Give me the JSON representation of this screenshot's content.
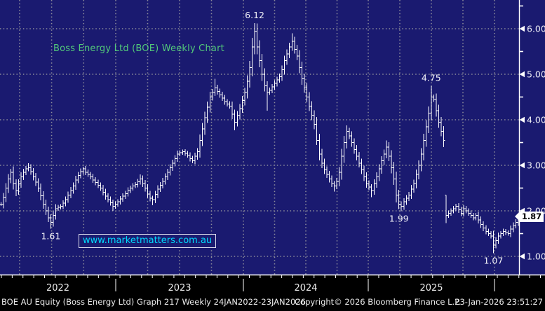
{
  "chart": {
    "title": "Boss Energy Ltd (BOE) Weekly Chart",
    "watermark": "www.marketmatters.com.au",
    "last_price": "1.87",
    "colors": {
      "plot_background": "#1a1a70",
      "frame_background": "#000000",
      "grid": "#97979f",
      "bar": "#ffffff",
      "title_green": "#52c87a",
      "watermark_cyan": "#00dcff",
      "axis_text": "#ededf5",
      "annotation_text": "#f2f2f8",
      "last_price_box": "#ffffff"
    }
  },
  "chart_data": {
    "type": "ohlc_bar",
    "frequency": "weekly",
    "ticker": "BOE AU Equity",
    "period": "24JAN2022-23JAN2026",
    "title": "Boss Energy Ltd (BOE) Weekly Chart",
    "ylim": [
      0.6,
      6.6
    ],
    "y_tick_labels": [
      "6.00",
      "5.00",
      "4.00",
      "3.00",
      "2.00",
      "1.00"
    ],
    "y_ticks": [
      6,
      5,
      4,
      3,
      2,
      1
    ],
    "y_minor_ticks": [
      6.5,
      5.5,
      4.5,
      3.5,
      2.5,
      1.5
    ],
    "x_year_labels": [
      "2022",
      "2023",
      "2024",
      "2025"
    ],
    "grid": "dotted",
    "closes": [
      2.15,
      2.3,
      2.5,
      2.7,
      2.85,
      2.6,
      2.45,
      2.6,
      2.75,
      2.85,
      2.92,
      2.95,
      2.86,
      2.75,
      2.63,
      2.5,
      2.33,
      2.15,
      2.0,
      1.85,
      1.75,
      1.9,
      2.05,
      2.08,
      2.1,
      2.17,
      2.25,
      2.35,
      2.45,
      2.55,
      2.68,
      2.78,
      2.86,
      2.92,
      2.85,
      2.8,
      2.75,
      2.68,
      2.62,
      2.56,
      2.5,
      2.41,
      2.32,
      2.25,
      2.18,
      2.1,
      2.15,
      2.2,
      2.26,
      2.32,
      2.38,
      2.45,
      2.5,
      2.55,
      2.58,
      2.64,
      2.7,
      2.6,
      2.5,
      2.37,
      2.28,
      2.25,
      2.36,
      2.48,
      2.56,
      2.65,
      2.75,
      2.85,
      2.95,
      3.05,
      3.15,
      3.25,
      3.28,
      3.3,
      3.26,
      3.22,
      3.15,
      3.1,
      3.2,
      3.3,
      3.55,
      3.8,
      4.05,
      4.28,
      4.5,
      4.6,
      4.7,
      4.62,
      4.55,
      4.48,
      4.4,
      4.35,
      4.3,
      4.12,
      3.95,
      4.1,
      4.25,
      4.42,
      4.6,
      4.85,
      5.15,
      5.6,
      5.95,
      5.6,
      5.3,
      5.0,
      4.75,
      4.6,
      4.65,
      4.72,
      4.8,
      4.88,
      4.95,
      5.1,
      5.3,
      5.45,
      5.6,
      5.72,
      5.55,
      5.4,
      5.15,
      4.9,
      4.7,
      4.5,
      4.3,
      4.1,
      3.9,
      3.55,
      3.25,
      3.05,
      2.9,
      2.8,
      2.7,
      2.6,
      2.55,
      2.65,
      2.85,
      3.2,
      3.5,
      3.75,
      3.65,
      3.5,
      3.35,
      3.2,
      3.05,
      2.9,
      2.75,
      2.6,
      2.52,
      2.45,
      2.6,
      2.75,
      2.92,
      3.1,
      3.25,
      3.4,
      3.2,
      2.95,
      2.7,
      2.35,
      2.15,
      2.1,
      2.2,
      2.28,
      2.35,
      2.48,
      2.6,
      2.8,
      3.0,
      3.25,
      3.55,
      3.85,
      4.15,
      4.5,
      4.45,
      4.2,
      3.95,
      3.75,
      3.55,
      1.9,
      1.95,
      2.0,
      2.05,
      2.1,
      2.02,
      1.95,
      2.05,
      2.0,
      1.95,
      1.9,
      1.85,
      1.9,
      1.8,
      1.7,
      1.62,
      1.55,
      1.5,
      1.45,
      1.25,
      1.35,
      1.45,
      1.5,
      1.55,
      1.52,
      1.5,
      1.6,
      1.68,
      1.75,
      1.87
    ],
    "wick_overrides": {
      "4": {
        "high": 2.92
      },
      "6": {
        "low": 2.32
      },
      "11": {
        "high": 3.05
      },
      "20": {
        "low": 1.61
      },
      "33": {
        "high": 2.97
      },
      "45": {
        "low": 2.0
      },
      "56": {
        "high": 2.8
      },
      "61": {
        "low": 2.12
      },
      "86": {
        "high": 4.9
      },
      "94": {
        "low": 3.77
      },
      "102": {
        "high": 6.12
      },
      "107": {
        "low": 4.2
      },
      "117": {
        "high": 5.9
      },
      "127": {
        "low": 3.45
      },
      "134": {
        "low": 2.42
      },
      "139": {
        "high": 3.88
      },
      "149": {
        "low": 2.3
      },
      "155": {
        "high": 3.55
      },
      "161": {
        "low": 1.99
      },
      "173": {
        "high": 4.75
      },
      "178": {
        "low": 3.4
      },
      "179": {
        "high": 2.35,
        "low": 1.73
      },
      "198": {
        "low": 1.07
      },
      "208": {
        "high": 1.92
      }
    },
    "annotations": [
      {
        "text": "6.12",
        "week": 102,
        "side": "above"
      },
      {
        "text": "4.75",
        "week": 173,
        "side": "above"
      },
      {
        "text": "1.61",
        "week": 20,
        "side": "below"
      },
      {
        "text": "1.99",
        "week": 160,
        "side": "below"
      },
      {
        "text": "1.07",
        "week": 198,
        "side": "below"
      }
    ]
  },
  "footer": {
    "left": "BOE AU Equity (Boss Energy Ltd) Graph 217 Weekly 24JAN2022-23JAN2026",
    "center": "Copyright© 2026 Bloomberg Finance L.P.",
    "right": "23-Jan-2026 23:51:27"
  }
}
